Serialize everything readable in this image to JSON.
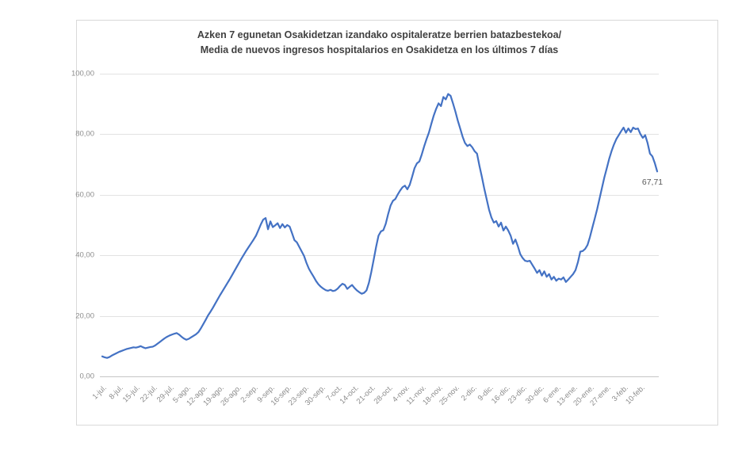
{
  "title": {
    "line1": "Azken 7 egunetan Osakidetzan izandako ospitaleratze berrien batazbestekoa/",
    "line2": "Media de nuevos ingresos hospitalarios en Osakidetza en los últimos 7 días"
  },
  "chart_data": {
    "type": "line",
    "title": "Azken 7 egunetan Osakidetzan izandako ospitaleratze berrien batazbestekoa/ Media de nuevos ingresos hospitalarios en Osakidetza en los últimos 7 días",
    "ylabel": "",
    "xlabel": "",
    "ylim": [
      0,
      100
    ],
    "grid": true,
    "legend": "none",
    "line_color": "#4472C4",
    "grid_color": "#e2e2e2",
    "tick_label_color": "#8c8c8c",
    "y_tick_labels": [
      "0,00",
      "20,00",
      "40,00",
      "60,00",
      "80,00",
      "100,00"
    ],
    "y_tick_values": [
      0,
      20,
      40,
      60,
      80,
      100
    ],
    "x_tick_labels": [
      "1-jul.",
      "8-jul.",
      "15-jul.",
      "22-jul.",
      "29-jul.",
      "5-ago.",
      "12-ago.",
      "19-ago.",
      "26-ago.",
      "2-sep.",
      "9-sep.",
      "16-sep.",
      "23-sep.",
      "30-sep.",
      "7-oct.",
      "14-oct.",
      "21-oct.",
      "28-oct.",
      "4-nov.",
      "11-nov.",
      "18-nov.",
      "25-nov.",
      "2-dic.",
      "9-dic.",
      "16-dic.",
      "23-dic.",
      "30-dic.",
      "6-ene.",
      "13-ene.",
      "20-ene.",
      "27-ene.",
      "3-feb.",
      "10-feb."
    ],
    "x_tick_interval_days": 7,
    "last_point_label": "67,71",
    "daily_values": [
      6.6,
      6.3,
      6.1,
      6.4,
      6.9,
      7.3,
      7.7,
      8.1,
      8.4,
      8.7,
      9.0,
      9.2,
      9.4,
      9.6,
      9.5,
      9.7,
      10.0,
      9.6,
      9.3,
      9.5,
      9.7,
      9.8,
      10.2,
      10.8,
      11.4,
      12.0,
      12.6,
      13.1,
      13.5,
      13.8,
      14.1,
      14.3,
      13.8,
      13.1,
      12.5,
      12.1,
      12.4,
      12.9,
      13.4,
      13.9,
      14.6,
      15.8,
      17.2,
      18.6,
      20.1,
      21.3,
      22.6,
      24.0,
      25.4,
      26.8,
      28.1,
      29.4,
      30.7,
      32.0,
      33.4,
      34.8,
      36.2,
      37.6,
      39.0,
      40.3,
      41.6,
      42.8,
      44.0,
      45.2,
      46.5,
      48.3,
      50.2,
      51.8,
      52.3,
      48.6,
      51.2,
      49.3,
      49.9,
      50.6,
      49.0,
      50.3,
      49.2,
      50.0,
      49.5,
      47.3,
      45.0,
      44.3,
      42.8,
      41.3,
      39.8,
      37.5,
      35.6,
      34.2,
      32.9,
      31.5,
      30.4,
      29.6,
      29.0,
      28.5,
      28.3,
      28.6,
      28.2,
      28.4,
      29.0,
      29.9,
      30.6,
      30.2,
      28.9,
      29.6,
      30.2,
      29.2,
      28.4,
      27.8,
      27.3,
      27.6,
      28.4,
      30.9,
      34.5,
      38.6,
      42.8,
      46.5,
      47.9,
      48.3,
      50.4,
      53.6,
      56.4,
      58.0,
      58.6,
      60.1,
      61.4,
      62.5,
      63.0,
      61.8,
      63.3,
      66.0,
      68.8,
      70.4,
      71.0,
      73.3,
      76.0,
      78.4,
      80.6,
      83.5,
      86.2,
      88.4,
      90.2,
      89.3,
      92.3,
      91.5,
      93.3,
      92.7,
      90.2,
      87.5,
      84.5,
      81.9,
      79.2,
      77.1,
      76.1,
      76.6,
      75.7,
      74.4,
      73.6,
      69.6,
      66.0,
      62.1,
      58.6,
      55.1,
      52.5,
      50.8,
      51.3,
      49.5,
      50.8,
      48.2,
      49.5,
      48.2,
      46.5,
      43.8,
      45.2,
      43.0,
      40.4,
      39.1,
      38.2,
      38.0,
      38.2,
      36.9,
      35.6,
      34.2,
      35.1,
      33.3,
      34.7,
      32.9,
      33.8,
      32.0,
      32.9,
      31.6,
      32.3,
      32.0,
      32.7,
      31.2,
      32.0,
      32.9,
      33.8,
      35.1,
      37.7,
      41.2,
      41.4,
      42.1,
      43.4,
      46.0,
      49.1,
      52.1,
      55.2,
      58.7,
      62.2,
      65.7,
      68.7,
      71.8,
      74.4,
      76.6,
      78.4,
      79.7,
      81.0,
      82.2,
      80.5,
      81.9,
      80.7,
      82.2,
      81.7,
      81.9,
      80.1,
      78.8,
      79.7,
      77.1,
      73.6,
      72.7,
      70.5,
      67.71
    ]
  }
}
